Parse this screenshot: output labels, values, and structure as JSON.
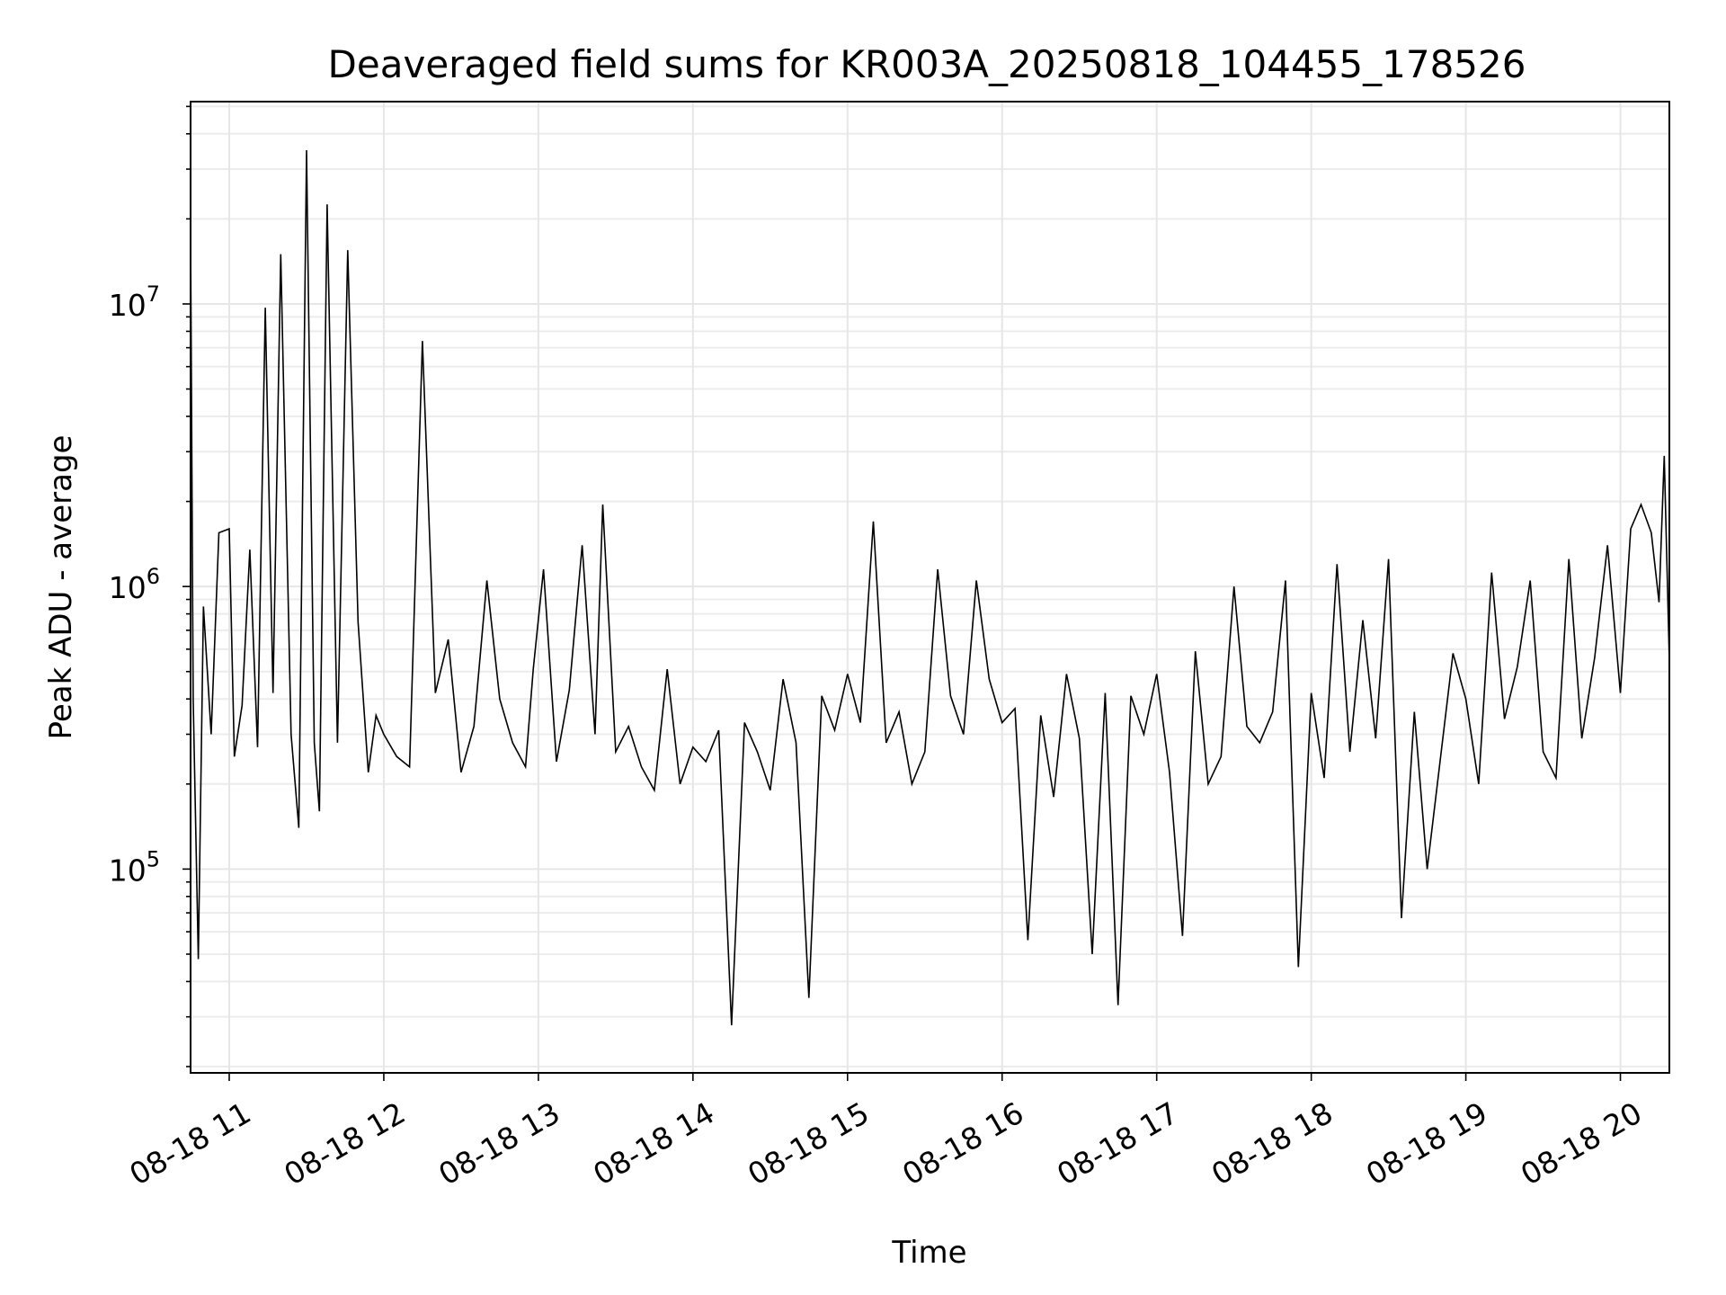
{
  "chart_data": {
    "type": "line",
    "title": "Deaveraged field sums for KR003A_20250818_104455_178526",
    "xlabel": "Time",
    "ylabel": "Peak ADU - average",
    "y_scale": "log",
    "ylim": [
      19000,
      52000000
    ],
    "xlim": [
      "2025-08-18 10:45",
      "2025-08-18 20:19"
    ],
    "grid": true,
    "legend": "none",
    "line_color": "#000000",
    "x_tick_labels": [
      "08-18 11",
      "08-18 12",
      "08-18 13",
      "08-18 14",
      "08-18 15",
      "08-18 16",
      "08-18 17",
      "08-18 18",
      "08-18 19",
      "08-18 20"
    ],
    "x_ticks": [
      "2025-08-18 11:00",
      "2025-08-18 12:00",
      "2025-08-18 13:00",
      "2025-08-18 14:00",
      "2025-08-18 15:00",
      "2025-08-18 16:00",
      "2025-08-18 17:00",
      "2025-08-18 18:00",
      "2025-08-18 19:00",
      "2025-08-18 20:00"
    ],
    "y_ticks": [
      {
        "value": 100000,
        "base": "10",
        "exp": "5"
      },
      {
        "value": 1000000,
        "base": "10",
        "exp": "6"
      },
      {
        "value": 10000000,
        "base": "10",
        "exp": "7"
      }
    ],
    "series": [
      {
        "x": [
          "2025-08-18 10:45",
          "2025-08-18 10:46",
          "2025-08-18 10:48",
          "2025-08-18 10:50",
          "2025-08-18 10:53",
          "2025-08-18 10:56",
          "2025-08-18 11:00",
          "2025-08-18 11:02",
          "2025-08-18 11:05",
          "2025-08-18 11:08",
          "2025-08-18 11:11",
          "2025-08-18 11:14",
          "2025-08-18 11:17",
          "2025-08-18 11:20",
          "2025-08-18 11:24",
          "2025-08-18 11:27",
          "2025-08-18 11:30",
          "2025-08-18 11:33",
          "2025-08-18 11:35",
          "2025-08-18 11:38",
          "2025-08-18 11:42",
          "2025-08-18 11:46",
          "2025-08-18 11:50",
          "2025-08-18 11:54",
          "2025-08-18 11:57",
          "2025-08-18 12:00",
          "2025-08-18 12:05",
          "2025-08-18 12:10",
          "2025-08-18 12:15",
          "2025-08-18 12:20",
          "2025-08-18 12:25",
          "2025-08-18 12:30",
          "2025-08-18 12:35",
          "2025-08-18 12:40",
          "2025-08-18 12:45",
          "2025-08-18 12:50",
          "2025-08-18 12:55",
          "2025-08-18 12:58",
          "2025-08-18 13:02",
          "2025-08-18 13:07",
          "2025-08-18 13:12",
          "2025-08-18 13:17",
          "2025-08-18 13:22",
          "2025-08-18 13:25",
          "2025-08-18 13:30",
          "2025-08-18 13:35",
          "2025-08-18 13:40",
          "2025-08-18 13:45",
          "2025-08-18 13:50",
          "2025-08-18 13:55",
          "2025-08-18 14:00",
          "2025-08-18 14:05",
          "2025-08-18 14:10",
          "2025-08-18 14:15",
          "2025-08-18 14:20",
          "2025-08-18 14:25",
          "2025-08-18 14:30",
          "2025-08-18 14:35",
          "2025-08-18 14:40",
          "2025-08-18 14:45",
          "2025-08-18 14:50",
          "2025-08-18 14:55",
          "2025-08-18 15:00",
          "2025-08-18 15:05",
          "2025-08-18 15:10",
          "2025-08-18 15:15",
          "2025-08-18 15:20",
          "2025-08-18 15:25",
          "2025-08-18 15:30",
          "2025-08-18 15:35",
          "2025-08-18 15:40",
          "2025-08-18 15:45",
          "2025-08-18 15:50",
          "2025-08-18 15:55",
          "2025-08-18 16:00",
          "2025-08-18 16:05",
          "2025-08-18 16:10",
          "2025-08-18 16:15",
          "2025-08-18 16:20",
          "2025-08-18 16:25",
          "2025-08-18 16:30",
          "2025-08-18 16:35",
          "2025-08-18 16:40",
          "2025-08-18 16:45",
          "2025-08-18 16:50",
          "2025-08-18 16:55",
          "2025-08-18 17:00",
          "2025-08-18 17:05",
          "2025-08-18 17:10",
          "2025-08-18 17:15",
          "2025-08-18 17:20",
          "2025-08-18 17:25",
          "2025-08-18 17:30",
          "2025-08-18 17:35",
          "2025-08-18 17:40",
          "2025-08-18 17:45",
          "2025-08-18 17:50",
          "2025-08-18 17:55",
          "2025-08-18 18:00",
          "2025-08-18 18:05",
          "2025-08-18 18:10",
          "2025-08-18 18:15",
          "2025-08-18 18:20",
          "2025-08-18 18:25",
          "2025-08-18 18:30",
          "2025-08-18 18:35",
          "2025-08-18 18:40",
          "2025-08-18 18:45",
          "2025-08-18 18:50",
          "2025-08-18 18:55",
          "2025-08-18 19:00",
          "2025-08-18 19:05",
          "2025-08-18 19:10",
          "2025-08-18 19:15",
          "2025-08-18 19:20",
          "2025-08-18 19:25",
          "2025-08-18 19:30",
          "2025-08-18 19:35",
          "2025-08-18 19:40",
          "2025-08-18 19:45",
          "2025-08-18 19:50",
          "2025-08-18 19:55",
          "2025-08-18 20:00",
          "2025-08-18 20:04",
          "2025-08-18 20:08",
          "2025-08-18 20:12",
          "2025-08-18 20:15",
          "2025-08-18 20:17",
          "2025-08-18 20:19"
        ],
        "y": [
          18000000,
          400000,
          48000,
          850000,
          300000,
          1550000,
          1600000,
          250000,
          380000,
          1350000,
          270000,
          9700000,
          420000,
          15000000,
          300000,
          140000,
          35000000,
          280000,
          160000,
          22500000,
          280000,
          15500000,
          750000,
          220000,
          350000,
          300000,
          250000,
          230000,
          7400000,
          420000,
          650000,
          220000,
          320000,
          1050000,
          400000,
          280000,
          230000,
          510000,
          1150000,
          240000,
          430000,
          1400000,
          300000,
          1950000,
          260000,
          320000,
          230000,
          190000,
          510000,
          200000,
          270000,
          240000,
          310000,
          28000,
          330000,
          260000,
          190000,
          470000,
          280000,
          35000,
          410000,
          310000,
          490000,
          330000,
          1700000,
          280000,
          360000,
          200000,
          260000,
          1150000,
          410000,
          300000,
          1050000,
          470000,
          330000,
          370000,
          56000,
          350000,
          180000,
          490000,
          290000,
          50000,
          420000,
          33000,
          410000,
          300000,
          490000,
          220000,
          58000,
          590000,
          200000,
          250000,
          1000000,
          320000,
          280000,
          360000,
          1050000,
          45000,
          420000,
          210000,
          1200000,
          260000,
          760000,
          290000,
          1250000,
          67000,
          360000,
          100000,
          240000,
          580000,
          400000,
          200000,
          1120000,
          340000,
          520000,
          1050000,
          260000,
          210000,
          1250000,
          290000,
          560000,
          1400000,
          420000,
          1600000,
          1950000,
          1550000,
          880000,
          2900000,
          540000
        ]
      }
    ]
  }
}
